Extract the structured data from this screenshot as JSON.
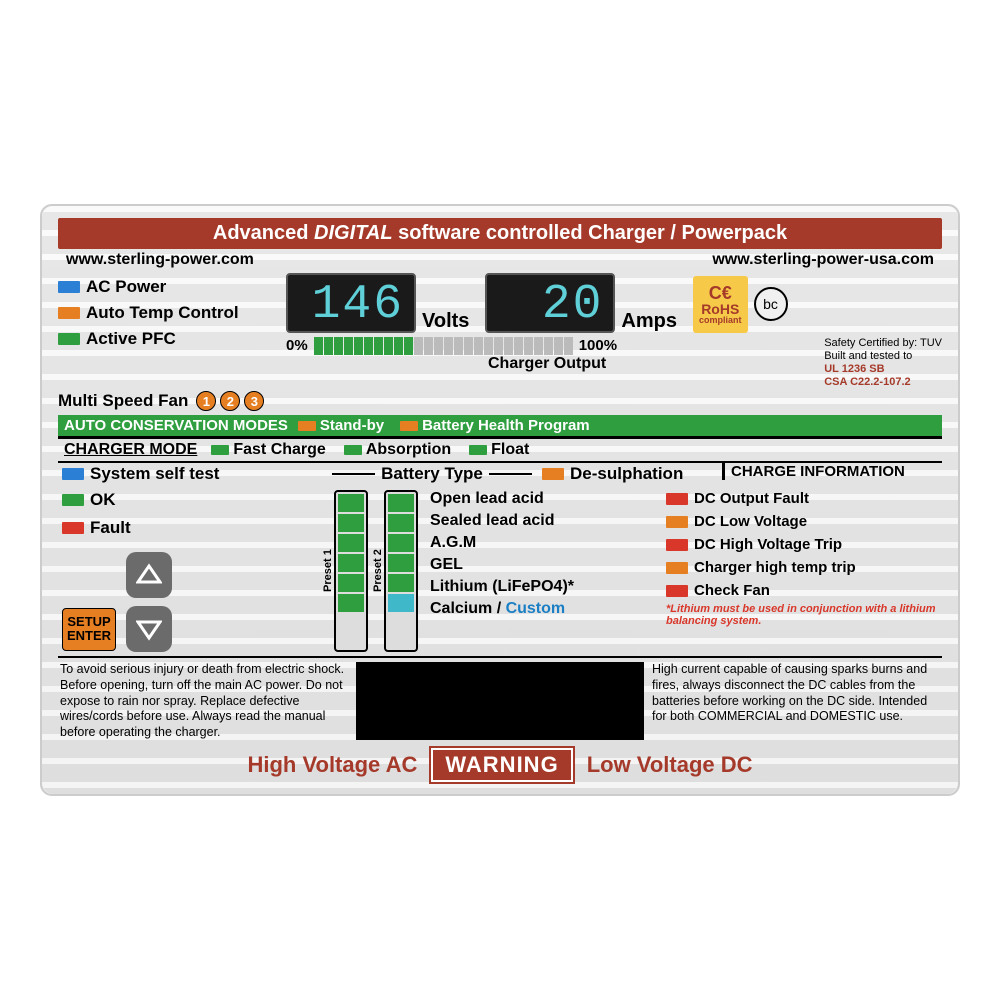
{
  "colors": {
    "brick": "#a53a2a",
    "green": "#2e9e3f",
    "orange": "#e67e22",
    "blue": "#1a7fc4",
    "led_blue": "#2b7fd4",
    "led_orange": "#e67e22",
    "led_green": "#2e9e3f",
    "led_red": "#d9372a",
    "led_grey": "#bbb",
    "led_cyan": "#3fb8c9"
  },
  "title": {
    "pre": "Advanced ",
    "em": "DIGITAL",
    "post": " software controlled Charger / Powerpack"
  },
  "urls": {
    "left": "www.sterling-power.com",
    "right": "www.sterling-power-usa.com"
  },
  "status_leds": [
    {
      "color": "#2b7fd4",
      "label": "AC Power"
    },
    {
      "color": "#e67e22",
      "label": "Auto Temp Control"
    },
    {
      "color": "#2e9e3f",
      "label": "Active PFC"
    }
  ],
  "fan": {
    "label": "Multi Speed Fan",
    "nums": [
      "1",
      "2",
      "3"
    ]
  },
  "display": {
    "volts": "146",
    "volts_unit": "Volts",
    "amps": "20",
    "amps_unit": "Amps"
  },
  "rohs": {
    "ce": "C€",
    "text": "RoHS",
    "sub": "compliant"
  },
  "bc": "bc",
  "output": {
    "label": "Charger Output",
    "min": "0%",
    "max": "100%",
    "segments": 26,
    "lit": 10
  },
  "cert": {
    "l1": "Safety Certified by: TUV",
    "l2": "Built and tested to",
    "l3": "UL 1236 SB",
    "l4": "CSA C22.2-107.2"
  },
  "conservation": {
    "title": "AUTO CONSERVATION MODES",
    "items": [
      {
        "color": "#e67e22",
        "label": "Stand-by"
      },
      {
        "color": "#e67e22",
        "label": "Battery Health Program"
      }
    ]
  },
  "charger_mode": {
    "title": "CHARGER MODE",
    "items": [
      {
        "color": "#2e9e3f",
        "label": "Fast Charge"
      },
      {
        "color": "#2e9e3f",
        "label": "Absorption"
      },
      {
        "color": "#2e9e3f",
        "label": "Float"
      }
    ]
  },
  "system_test": {
    "color": "#2b7fd4",
    "label": "System self test"
  },
  "desulph": {
    "color": "#e67e22",
    "label": "De-sulphation"
  },
  "charge_info_hdr": "CHARGE INFORMATION",
  "okfault": [
    {
      "color": "#2e9e3f",
      "label": "OK"
    },
    {
      "color": "#d9372a",
      "label": "Fault"
    }
  ],
  "setup": {
    "l1": "SETUP",
    "l2": "ENTER"
  },
  "battery_type": {
    "header": "Battery Type",
    "preset_labels": [
      "Preset 1",
      "Preset 2"
    ],
    "preset1": [
      "#2e9e3f",
      "#2e9e3f",
      "#2e9e3f",
      "#2e9e3f",
      "#2e9e3f",
      "#2e9e3f"
    ],
    "preset2": [
      "#2e9e3f",
      "#2e9e3f",
      "#2e9e3f",
      "#2e9e3f",
      "#2e9e3f",
      "#3fb8c9"
    ],
    "items": [
      "Open lead acid",
      "Sealed lead acid",
      "A.G.M",
      "GEL",
      "Lithium (LiFePO4)*",
      "Calcium /"
    ],
    "custom": "Custom",
    "note": "*Lithium must be used in conjunction with a lithium balancing system."
  },
  "charge_info": [
    {
      "color": "#d9372a",
      "label": "DC Output Fault"
    },
    {
      "color": "#e67e22",
      "label": "DC Low Voltage"
    },
    {
      "color": "#d9372a",
      "label": "DC High Voltage Trip"
    },
    {
      "color": "#e67e22",
      "label": "Charger high temp trip"
    },
    {
      "color": "#d9372a",
      "label": "Check Fan"
    }
  ],
  "safety": {
    "left": "To avoid serious injury or death from electric shock. Before opening, turn off the main AC power. Do not expose to rain nor spray. Replace defective wires/cords before use. Always read the manual before operating the charger.",
    "right": "High current capable of causing sparks burns and fires, always disconnect the DC cables from the batteries before working on the DC side. Intended for both COMMERCIAL and DOMESTIC use."
  },
  "warning": {
    "left": "High Voltage AC",
    "badge": "WARNING",
    "right": "Low Voltage DC"
  }
}
